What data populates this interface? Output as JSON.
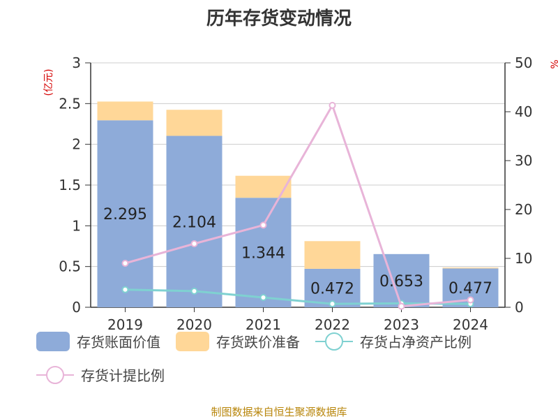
{
  "header": {
    "title": "历年存货变动情况"
  },
  "footer": {
    "source": "制图数据来自恒生聚源数据库"
  },
  "legend": {
    "items": [
      {
        "label": "存货账面价值",
        "kind": "bar",
        "color": "#8eabd9"
      },
      {
        "label": "存货跌价准备",
        "kind": "bar",
        "color": "#ffd798"
      },
      {
        "label": "存货占净资产比例",
        "kind": "line",
        "color": "#7fd1d1"
      },
      {
        "label": "存货计提比例",
        "kind": "line",
        "color": "#e8b4d8"
      }
    ]
  },
  "chart_data": {
    "type": "bar",
    "title": "历年存货变动情况",
    "categories": [
      "2019",
      "2020",
      "2021",
      "2022",
      "2023",
      "2024"
    ],
    "ylabel_left": "(亿元)",
    "ylabel_right": "%",
    "ylim_left": [
      0,
      3
    ],
    "yticks_left": [
      "0",
      "0.5",
      "1",
      "1.5",
      "2",
      "2.5",
      "3"
    ],
    "ylim_right": [
      0,
      50
    ],
    "yticks_right": [
      "0",
      "10",
      "20",
      "30",
      "40",
      "50"
    ],
    "grid": true,
    "legend_position": "bottom",
    "stacked_bars": [
      {
        "name": "存货账面价值",
        "color": "#8eabd9",
        "values": [
          2.295,
          2.104,
          1.344,
          0.472,
          0.653,
          0.477
        ],
        "labels": [
          "2.295",
          "2.104",
          "1.344",
          "0.472",
          "0.653",
          "0.477"
        ]
      },
      {
        "name": "存货跌价准备",
        "color": "#ffd798",
        "values": [
          0.23,
          0.32,
          0.27,
          0.34,
          0.0,
          0.01
        ]
      }
    ],
    "lines": [
      {
        "name": "存货占净资产比例",
        "color": "#7fd1d1",
        "axis": "right",
        "values": [
          3.6,
          3.3,
          2.0,
          0.7,
          0.8,
          0.7
        ]
      },
      {
        "name": "存货计提比例",
        "color": "#e8b4d8",
        "axis": "right",
        "values": [
          9.0,
          13.0,
          16.8,
          41.3,
          0.2,
          1.5
        ]
      }
    ]
  }
}
